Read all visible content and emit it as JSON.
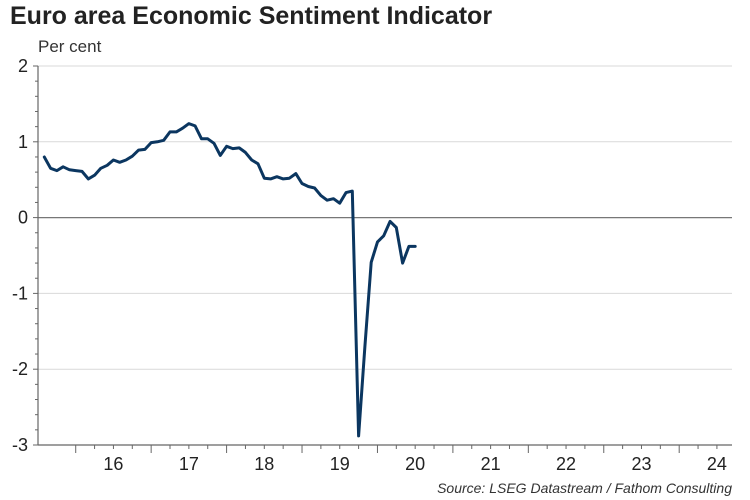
{
  "colors": {
    "line": "#0b3660",
    "axis": "#666666",
    "zero_line": "#777777",
    "grid": "#d9d9d9"
  },
  "chart_data": {
    "type": "line",
    "title": "Euro area Economic Sentiment Indicator",
    "subtitle": "Per cent",
    "source": "Source: LSEG Datastream / Fathom Consulting",
    "xlabel": "",
    "ylabel": "Per cent",
    "xlim": [
      2015.5,
      2024.7
    ],
    "ylim": [
      -3,
      2
    ],
    "x_ticks": [
      2016,
      2017,
      2018,
      2019,
      2020,
      2021,
      2022,
      2023,
      2024
    ],
    "x_tick_labels": [
      "16",
      "17",
      "18",
      "19",
      "20",
      "21",
      "22",
      "23",
      "24"
    ],
    "y_ticks": [
      2,
      1,
      0,
      -1,
      -2,
      -3
    ],
    "y_tick_labels": [
      "2",
      "1",
      "0",
      "-1",
      "-2",
      "-3"
    ],
    "grid": "horizontal",
    "series": [
      {
        "name": "Economic Sentiment Indicator",
        "x": [
          2015.583,
          2015.667,
          2015.75,
          2015.833,
          2015.917,
          2016.0,
          2016.083,
          2016.167,
          2016.25,
          2016.333,
          2016.417,
          2016.5,
          2016.583,
          2016.667,
          2016.75,
          2016.833,
          2016.917,
          2017.0,
          2017.083,
          2017.167,
          2017.25,
          2017.333,
          2017.417,
          2017.5,
          2017.583,
          2017.667,
          2017.75,
          2017.833,
          2017.917,
          2018.0,
          2018.083,
          2018.167,
          2018.25,
          2018.333,
          2018.417,
          2018.5,
          2018.583,
          2018.667,
          2018.75,
          2018.833,
          2018.917,
          2019.0,
          2019.083,
          2019.167,
          2019.25,
          2019.333,
          2019.417,
          2019.5,
          2019.583,
          2019.667,
          2019.75,
          2019.833,
          2019.917,
          2020.0,
          2020.083,
          2020.167,
          2020.25,
          2020.333,
          2020.417,
          2020.5
        ],
        "y": [
          0.8,
          0.65,
          0.62,
          0.67,
          0.63,
          0.62,
          0.61,
          0.51,
          0.56,
          0.65,
          0.69,
          0.76,
          0.73,
          0.76,
          0.81,
          0.89,
          0.9,
          0.99,
          1.0,
          1.02,
          1.13,
          1.13,
          1.18,
          1.24,
          1.21,
          1.04,
          1.04,
          0.98,
          0.82,
          0.94,
          0.91,
          0.92,
          0.86,
          0.76,
          0.71,
          0.52,
          0.51,
          0.54,
          0.51,
          0.52,
          0.58,
          0.45,
          0.41,
          0.39,
          0.29,
          0.23,
          0.25,
          0.19,
          0.33,
          0.35,
          -2.88,
          -1.7,
          -0.59,
          -0.32,
          -0.24,
          -0.05,
          -0.13,
          -0.6,
          -0.38,
          -0.38
        ]
      }
    ]
  }
}
